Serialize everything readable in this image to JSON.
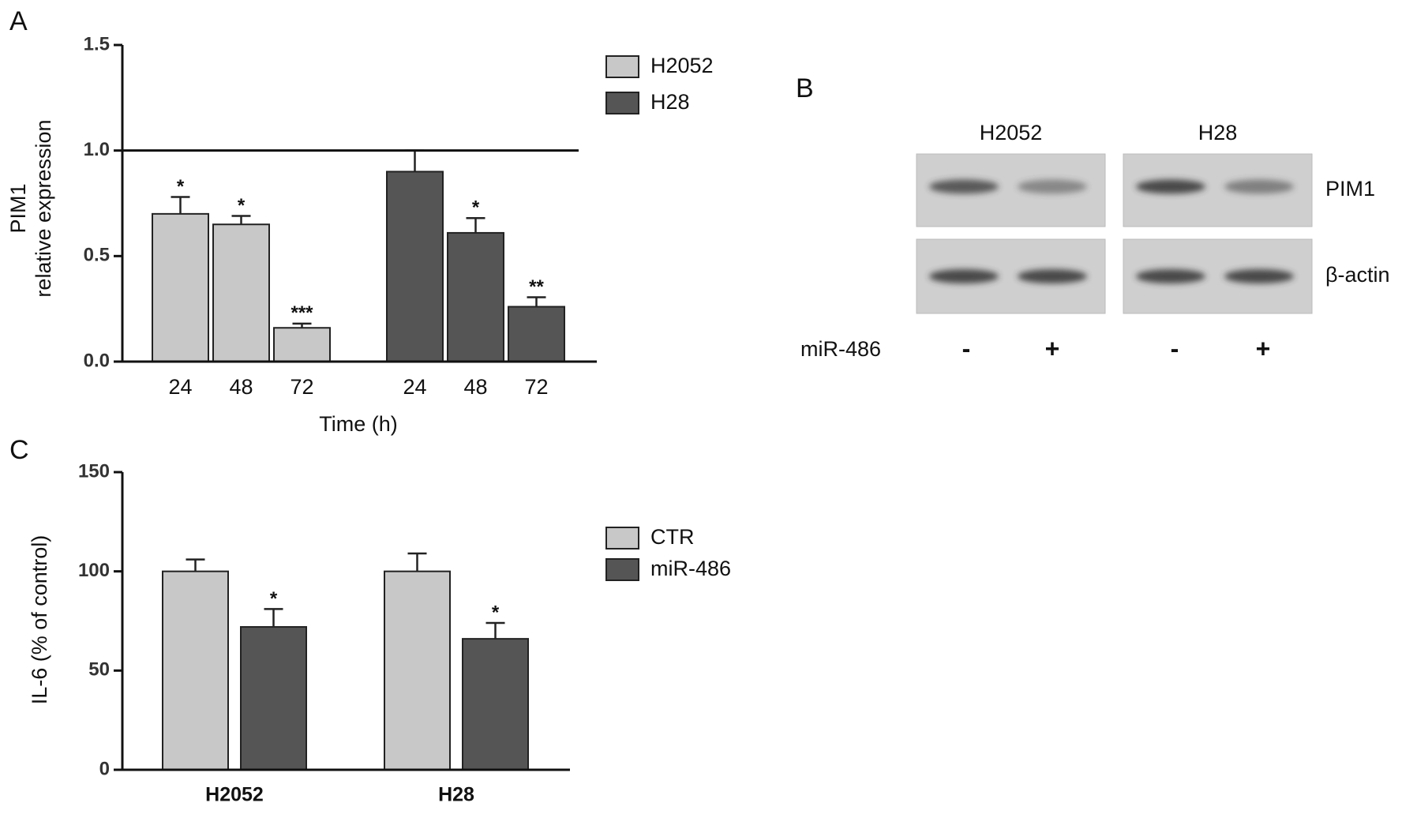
{
  "chart_data": [
    {
      "type": "bar",
      "panel": "A",
      "ylabel": [
        "PIM1",
        "relative expression"
      ],
      "xlabel": "Time (h)",
      "categories": [
        "24",
        "48",
        "72"
      ],
      "series": [
        {
          "name": "H2052",
          "color": "#c8c8c8",
          "values": [
            0.7,
            0.65,
            0.16
          ],
          "errors": [
            0.08,
            0.04,
            0.02
          ],
          "significance": [
            "*",
            "*",
            "***"
          ]
        },
        {
          "name": "H28",
          "color": "#555555",
          "values": [
            0.9,
            0.61,
            0.26
          ],
          "errors": [
            0.1,
            0.07,
            0.045
          ],
          "significance": [
            null,
            "*",
            "**"
          ]
        }
      ],
      "reference_line": 1.0,
      "ylim": [
        0,
        1.5
      ],
      "yticks": [
        {
          "value": 0,
          "label": "0.0"
        },
        {
          "value": 0.5,
          "label": "0.5"
        },
        {
          "value": 1.0,
          "label": "1.0"
        },
        {
          "value": 1.5,
          "label": "1.5"
        }
      ],
      "legend": "upper right"
    },
    {
      "type": "bar",
      "panel": "C",
      "ylabel": [
        "IL-6 (% of control)"
      ],
      "categories": [
        "H2052",
        "H28"
      ],
      "series": [
        {
          "name": "CTR",
          "color": "#c8c8c8",
          "values": [
            100,
            100
          ],
          "errors": [
            6,
            9
          ],
          "significance": [
            null,
            null
          ]
        },
        {
          "name": "miR-486",
          "color": "#555555",
          "values": [
            72,
            66
          ],
          "errors": [
            9,
            8
          ],
          "significance": [
            "*",
            "*"
          ]
        }
      ],
      "ylim": [
        0,
        150
      ],
      "yticks": [
        0,
        50,
        100,
        150
      ],
      "legend": "upper right"
    }
  ],
  "blot": {
    "panel": "B",
    "columns": [
      "H2052",
      "H28"
    ],
    "rows": [
      "PIM1",
      "β-actin"
    ],
    "treatment": "miR-486",
    "lanes": [
      "-",
      "+",
      "-",
      "+"
    ]
  }
}
